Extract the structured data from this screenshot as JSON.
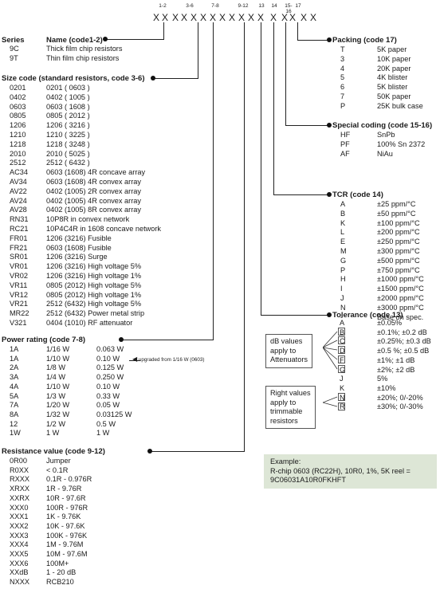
{
  "header": {
    "letters": [
      "X",
      "X",
      "X",
      "X",
      "X",
      "X",
      "X",
      "X",
      "X",
      "X",
      "X",
      "X",
      "X",
      "X",
      "X",
      "X",
      "X"
    ],
    "group_labels": [
      "1-2",
      "3-6",
      "7-8",
      "9-12",
      "13",
      "14",
      "15-16",
      "17"
    ]
  },
  "series": {
    "title": "Series",
    "name_title": "Name (code1-2)",
    "rows": [
      {
        "code": "9C",
        "name": "Thick film chip resistors"
      },
      {
        "code": "9T",
        "name": "Thin film chip resistors"
      }
    ]
  },
  "size": {
    "title": "Size code (standard resistors, code 3-6)",
    "rows": [
      {
        "code": "0201",
        "desc": "0201 ( 0603 )"
      },
      {
        "code": "0402",
        "desc": "0402 ( 1005 )"
      },
      {
        "code": "0603",
        "desc": "0603 ( 1608 )"
      },
      {
        "code": "0805",
        "desc": "0805 ( 2012 )"
      },
      {
        "code": "1206",
        "desc": "1206 ( 3216 )"
      },
      {
        "code": "1210",
        "desc": "1210 ( 3225 )"
      },
      {
        "code": "1218",
        "desc": "1218 ( 3248 )"
      },
      {
        "code": "2010",
        "desc": "2010 ( 5025 )"
      },
      {
        "code": "2512",
        "desc": "2512 ( 6432 )"
      },
      {
        "code": "AC34",
        "desc": "0603 (1608) 4R concave array"
      },
      {
        "code": "AV34",
        "desc": "0603 (1608) 4R convex array"
      },
      {
        "code": "AV22",
        "desc": "0402 (1005) 2R convex array"
      },
      {
        "code": "AV24",
        "desc": "0402 (1005) 4R convex array"
      },
      {
        "code": "AV28",
        "desc": "0402 (1005) 8R convex array"
      },
      {
        "code": "RN31",
        "desc": "10P8R in convex network"
      },
      {
        "code": "RC21",
        "desc": "10P4C4R in 1608 concave network"
      },
      {
        "code": "FR01",
        "desc": "1206 (3216) Fusible"
      },
      {
        "code": "FR21",
        "desc": "0603 (1608) Fusible"
      },
      {
        "code": "SR01",
        "desc": "1206 (3216) Surge"
      },
      {
        "code": "VR01",
        "desc": "1206 (3216) High voltage 5%"
      },
      {
        "code": "VR02",
        "desc": "1206 (3216) High voltage 1%"
      },
      {
        "code": "VR11",
        "desc": "0805 (2012) High voltage 5%"
      },
      {
        "code": "VR12",
        "desc": "0805 (2012) High voltage 1%"
      },
      {
        "code": "VR21",
        "desc": "2512 (6432) High voltage 5%"
      },
      {
        "code": "MR22",
        "desc": "2512 (6432) Power metal strip"
      },
      {
        "code": "V321",
        "desc": "0404 (1010) RF attenuator"
      }
    ]
  },
  "power": {
    "title": "Power rating (code 7-8)",
    "upgrade_note": "upgraded from 1/16 W (0603)",
    "rows": [
      {
        "code": "1A",
        "frac": "1/16 W",
        "dec": "0.063 W"
      },
      {
        "code": "1A",
        "frac": "1/10 W",
        "dec": "0.10 W"
      },
      {
        "code": "2A",
        "frac": "1/8 W",
        "dec": "0.125 W"
      },
      {
        "code": "3A",
        "frac": "1/4 W",
        "dec": "0.250 W"
      },
      {
        "code": "4A",
        "frac": "1/10 W",
        "dec": "0.10 W"
      },
      {
        "code": "5A",
        "frac": "1/3 W",
        "dec": "0.33 W"
      },
      {
        "code": "7A",
        "frac": "1/20 W",
        "dec": "0.05 W"
      },
      {
        "code": "8A",
        "frac": "1/32 W",
        "dec": "0.03125 W"
      },
      {
        "code": "12",
        "frac": "1/2 W",
        "dec": "0.5 W"
      },
      {
        "code": "1W",
        "frac": "1 W",
        "dec": "1 W"
      }
    ]
  },
  "resistance": {
    "title": "Resistance value (code 9-12)",
    "rows": [
      {
        "code": "0R00",
        "desc": "Jumper"
      },
      {
        "code": "R0XX",
        "desc": "< 0.1R"
      },
      {
        "code": "RXXX",
        "desc": "0.1R - 0.976R"
      },
      {
        "code": "XRXX",
        "desc": "1R - 9.76R"
      },
      {
        "code": "XXRX",
        "desc": "10R - 97.6R"
      },
      {
        "code": "XXX0",
        "desc": "100R - 976R"
      },
      {
        "code": "XXX1",
        "desc": "1K - 9.76K"
      },
      {
        "code": "XXX2",
        "desc": "10K - 97.6K"
      },
      {
        "code": "XXX3",
        "desc": "100K - 976K"
      },
      {
        "code": "XXX4",
        "desc": "1M - 9.76M"
      },
      {
        "code": "XXX5",
        "desc": "10M - 97.6M"
      },
      {
        "code": "XXX6",
        "desc": "100M+"
      },
      {
        "code": "XXdB",
        "desc": "1 - 20 dB"
      },
      {
        "code": "NXXX",
        "desc": "RCB210"
      }
    ]
  },
  "packing": {
    "title": "Packing (code 17)",
    "rows": [
      {
        "code": "T",
        "desc": "5K paper"
      },
      {
        "code": "3",
        "desc": "10K paper"
      },
      {
        "code": "4",
        "desc": "20K paper"
      },
      {
        "code": "5",
        "desc": "4K blister"
      },
      {
        "code": "6",
        "desc": "5K blister"
      },
      {
        "code": "7",
        "desc": "50K paper"
      },
      {
        "code": "P",
        "desc": "25K bulk case"
      }
    ]
  },
  "special": {
    "title": "Special coding (code 15-16)",
    "rows": [
      {
        "code": "HF",
        "desc": "SnPb"
      },
      {
        "code": "PF",
        "desc": "100% Sn 2372"
      },
      {
        "code": "AF",
        "desc": "NiAu"
      }
    ]
  },
  "tcr": {
    "title": "TCR (code 14)",
    "rows": [
      {
        "code": "A",
        "desc": "±25 ppm/°C"
      },
      {
        "code": "B",
        "desc": "±50 ppm/°C"
      },
      {
        "code": "K",
        "desc": "±100 ppm/°C"
      },
      {
        "code": "L",
        "desc": "±200 ppm/°C"
      },
      {
        "code": "E",
        "desc": "±250 ppm/°C"
      },
      {
        "code": "M",
        "desc": "±300 ppm/°C"
      },
      {
        "code": "G",
        "desc": "±500 ppm/°C"
      },
      {
        "code": "P",
        "desc": "±750 ppm/°C"
      },
      {
        "code": "H",
        "desc": "±1000 ppm/°C"
      },
      {
        "code": "I",
        "desc": "±1500 ppm/°C"
      },
      {
        "code": "J",
        "desc": "±2000 ppm/°C"
      },
      {
        "code": "N",
        "desc": "±3000 ppm/°C"
      },
      {
        "code": "-",
        "desc": "Base on spec."
      }
    ]
  },
  "tolerance": {
    "title": "Tolerance (code 13)",
    "rows": [
      {
        "code": "A",
        "desc": "±0.05%"
      },
      {
        "code": "B",
        "desc": "±0.1%; ±0.2 dB"
      },
      {
        "code": "C",
        "desc": "±0.25%; ±0.3 dB"
      },
      {
        "code": "D",
        "desc": "±0.5 %; ±0.5 dB"
      },
      {
        "code": "F",
        "desc": "±1%; ±1 dB"
      },
      {
        "code": "G",
        "desc": "±2%; ±2 dB"
      },
      {
        "code": "J",
        "desc": "5%"
      },
      {
        "code": "K",
        "desc": "±10%"
      },
      {
        "code": "N",
        "desc": "±20%; 0/-20%"
      },
      {
        "code": "R",
        "desc": "±30%; 0/-30%"
      }
    ],
    "db_note": [
      "dB values",
      "apply to",
      "Attenuators"
    ],
    "right_note": [
      "Right values",
      "apply to",
      "trimmable",
      "resistors"
    ]
  },
  "example": {
    "lines": [
      "Example:",
      "R-chip 0603 (RC22H), 10R0, 1%, 5K reel  =",
      "9C06031A10R0FKHFT"
    ]
  }
}
